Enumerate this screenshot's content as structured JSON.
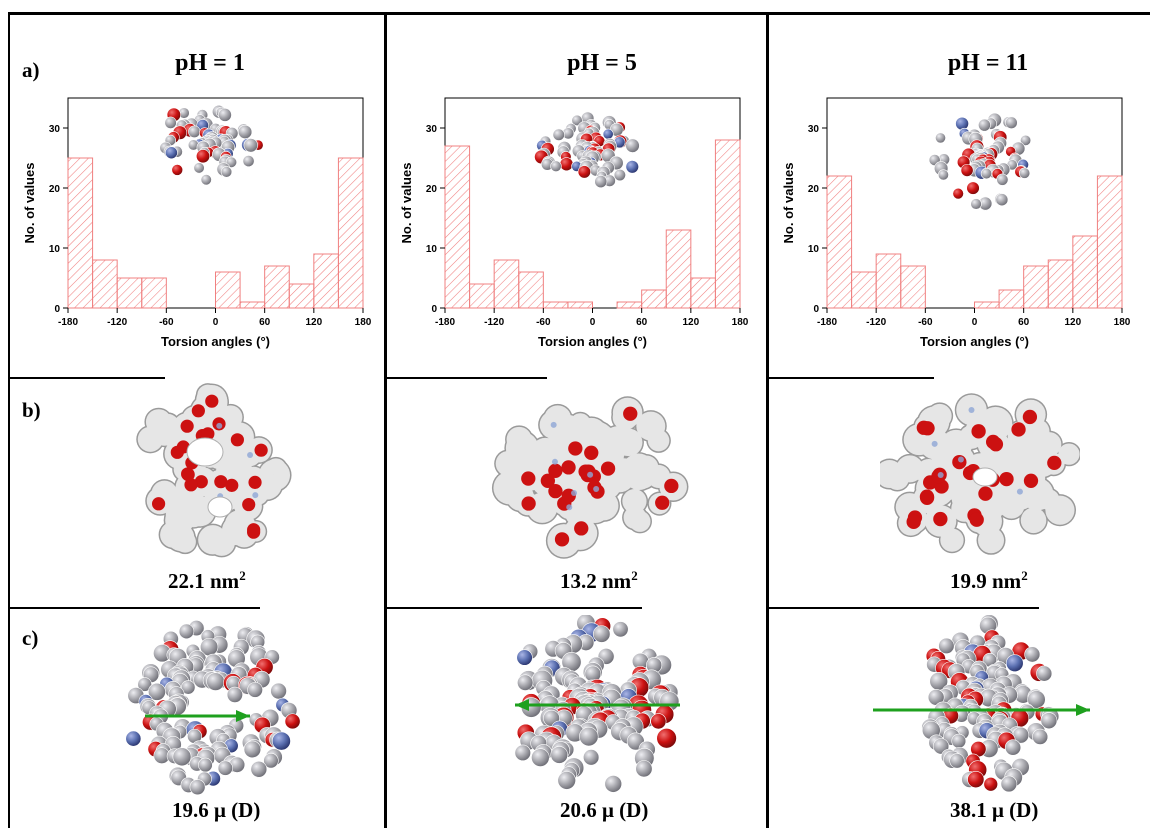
{
  "row_labels": {
    "a": "a)",
    "b": "b)",
    "c": "c)"
  },
  "columns": [
    {
      "ph_label": "pH = 1",
      "area_value": "22.1 nm",
      "area_sup": "2",
      "dipole_value": "19.6 μ (D)"
    },
    {
      "ph_label": "pH = 5",
      "area_value": "13.2 nm",
      "area_sup": "2",
      "dipole_value": "20.6 μ (D)"
    },
    {
      "ph_label": "pH = 11",
      "area_value": "19.9 nm",
      "area_sup": "2",
      "dipole_value": "38.1 μ (D)"
    }
  ],
  "colors": {
    "bar_stroke": "#f08080",
    "oxygen": "#cc1111",
    "carbon": "#a7a7ad",
    "nitrogen": "#5a6fb0",
    "surface": "#e6e6e6",
    "dipole_arrow": "#1ea01e"
  },
  "chart_data": [
    {
      "type": "bar",
      "xlabel": "Torsion angles (°)",
      "ylabel": "No. of values",
      "xlim": [
        -180,
        180
      ],
      "ylim": [
        0,
        35
      ],
      "xticks": [
        -180,
        -120,
        -60,
        0,
        60,
        120,
        180
      ],
      "yticks": [
        0,
        10,
        20,
        30
      ],
      "bin_width": 30,
      "bins": [
        -180,
        -150,
        -120,
        -90,
        -60,
        -30,
        0,
        30,
        60,
        90,
        120,
        150
      ],
      "values": [
        25,
        8,
        5,
        5,
        0,
        0,
        6,
        1,
        7,
        4,
        9,
        25
      ]
    },
    {
      "type": "bar",
      "xlabel": "Torsion angles (°)",
      "ylabel": "No. of values",
      "xlim": [
        -180,
        180
      ],
      "ylim": [
        0,
        35
      ],
      "xticks": [
        -180,
        -120,
        -60,
        0,
        60,
        120,
        180
      ],
      "yticks": [
        0,
        10,
        20,
        30
      ],
      "bin_width": 30,
      "bins": [
        -180,
        -150,
        -120,
        -90,
        -60,
        -30,
        0,
        30,
        60,
        90,
        120,
        150
      ],
      "values": [
        27,
        4,
        8,
        6,
        1,
        1,
        0,
        1,
        3,
        13,
        5,
        28
      ]
    },
    {
      "type": "bar",
      "xlabel": "Torsion angles (°)",
      "ylabel": "No. of values",
      "xlim": [
        -180,
        180
      ],
      "ylim": [
        0,
        35
      ],
      "xticks": [
        -180,
        -120,
        -60,
        0,
        60,
        120,
        180
      ],
      "yticks": [
        0,
        10,
        20,
        30
      ],
      "bin_width": 30,
      "bins": [
        -180,
        -150,
        -120,
        -90,
        -60,
        -30,
        0,
        30,
        60,
        90,
        120,
        150
      ],
      "values": [
        22,
        6,
        9,
        7,
        0,
        0,
        1,
        3,
        7,
        8,
        12,
        22
      ]
    }
  ]
}
